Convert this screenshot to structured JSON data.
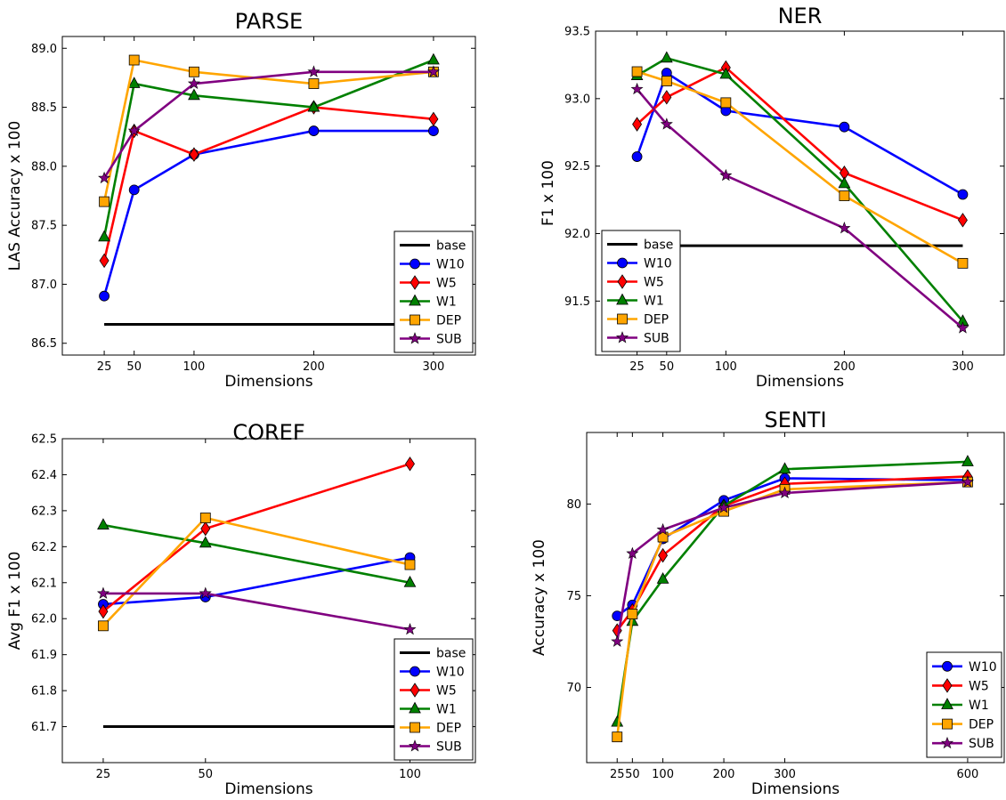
{
  "series_styles": {
    "base": {
      "color": "#000000",
      "marker": "none"
    },
    "W10": {
      "color": "#0000ff",
      "marker": "circle"
    },
    "W5": {
      "color": "#ff0000",
      "marker": "diamond"
    },
    "W1": {
      "color": "#008000",
      "marker": "triangle"
    },
    "DEP": {
      "color": "#ffa500",
      "marker": "square"
    },
    "SUB": {
      "color": "#800080",
      "marker": "star"
    }
  },
  "chart_data": [
    {
      "id": "parse",
      "type": "line",
      "title": "PARSE",
      "xlabel": "Dimensions",
      "ylabel": "LAS Accuracy x 100",
      "xlim": [
        -10,
        335
      ],
      "ylim": [
        86.4,
        89.1
      ],
      "xticks": [
        25,
        50,
        100,
        200,
        300
      ],
      "yticks": [
        "86.5",
        "87.0",
        "87.5",
        "88.0",
        "88.5",
        "89.0"
      ],
      "legend_position": "lower-right",
      "series": [
        {
          "name": "base",
          "x": [
            25,
            300
          ],
          "values": [
            86.66,
            86.66
          ]
        },
        {
          "name": "W10",
          "x": [
            25,
            50,
            100,
            200,
            300
          ],
          "values": [
            86.9,
            87.8,
            88.1,
            88.3,
            88.3
          ]
        },
        {
          "name": "W5",
          "x": [
            25,
            50,
            100,
            200,
            300
          ],
          "values": [
            87.2,
            88.3,
            88.1,
            88.5,
            88.4
          ]
        },
        {
          "name": "W1",
          "x": [
            25,
            50,
            100,
            200,
            300
          ],
          "values": [
            87.4,
            88.7,
            88.6,
            88.5,
            88.9
          ]
        },
        {
          "name": "DEP",
          "x": [
            25,
            50,
            100,
            200,
            300
          ],
          "values": [
            87.7,
            88.9,
            88.8,
            88.7,
            88.8
          ]
        },
        {
          "name": "SUB",
          "x": [
            25,
            50,
            100,
            200,
            300
          ],
          "values": [
            87.9,
            88.3,
            88.7,
            88.8,
            88.8
          ]
        }
      ]
    },
    {
      "id": "ner",
      "type": "line",
      "title": "NER",
      "xlabel": "Dimensions",
      "ylabel": "F1 x 100",
      "xlim": [
        -10,
        335
      ],
      "ylim": [
        91.1,
        93.5
      ],
      "xticks": [
        25,
        50,
        100,
        200,
        300
      ],
      "yticks": [
        "91.5",
        "92.0",
        "92.5",
        "93.0",
        "93.5"
      ],
      "legend_position": "lower-left",
      "series": [
        {
          "name": "base",
          "x": [
            25,
            300
          ],
          "values": [
            91.91,
            91.91
          ]
        },
        {
          "name": "W10",
          "x": [
            25,
            50,
            100,
            200,
            300
          ],
          "values": [
            92.57,
            93.19,
            92.91,
            92.79,
            92.29
          ]
        },
        {
          "name": "W5",
          "x": [
            25,
            50,
            100,
            200,
            300
          ],
          "values": [
            92.81,
            93.01,
            93.23,
            92.45,
            92.1
          ]
        },
        {
          "name": "W1",
          "x": [
            25,
            50,
            100,
            200,
            300
          ],
          "values": [
            93.17,
            93.3,
            93.18,
            92.37,
            91.35
          ]
        },
        {
          "name": "DEP",
          "x": [
            25,
            50,
            100,
            200,
            300
          ],
          "values": [
            93.2,
            93.13,
            92.97,
            92.28,
            91.78
          ]
        },
        {
          "name": "SUB",
          "x": [
            25,
            50,
            100,
            200,
            300
          ],
          "values": [
            93.07,
            92.81,
            92.43,
            92.04,
            91.3
          ]
        }
      ]
    },
    {
      "id": "coref",
      "type": "line",
      "title": "COREF",
      "xlabel": "Dimensions",
      "ylabel": "Avg F1 x 100",
      "xlim": [
        15,
        116
      ],
      "ylim": [
        61.6,
        62.5
      ],
      "xticks": [
        25,
        50,
        100
      ],
      "yticks": [
        "61.7",
        "61.8",
        "61.9",
        "62.0",
        "62.1",
        "62.2",
        "62.3",
        "62.4",
        "62.5"
      ],
      "legend_position": "lower-right",
      "series": [
        {
          "name": "base",
          "x": [
            25,
            100
          ],
          "values": [
            61.7,
            61.7
          ]
        },
        {
          "name": "W10",
          "x": [
            25,
            50,
            100
          ],
          "values": [
            62.04,
            62.06,
            62.17
          ]
        },
        {
          "name": "W5",
          "x": [
            25,
            50,
            100
          ],
          "values": [
            62.02,
            62.25,
            62.43
          ]
        },
        {
          "name": "W1",
          "x": [
            25,
            50,
            100
          ],
          "values": [
            62.26,
            62.21,
            62.1
          ]
        },
        {
          "name": "DEP",
          "x": [
            25,
            50,
            100
          ],
          "values": [
            61.98,
            62.28,
            62.15
          ]
        },
        {
          "name": "SUB",
          "x": [
            25,
            50,
            100
          ],
          "values": [
            62.07,
            62.07,
            61.97
          ]
        }
      ]
    },
    {
      "id": "senti",
      "type": "line",
      "title": "SENTI",
      "xlabel": "Dimensions",
      "ylabel": "Accuracy x 100",
      "xlim": [
        -25,
        660
      ],
      "ylim": [
        65.9,
        83.9
      ],
      "xticks": [
        25,
        50,
        100,
        200,
        300,
        600
      ],
      "xtick_labels": [
        "25",
        "50",
        "100",
        "200",
        "300",
        "600"
      ],
      "yticks": [
        "70",
        "75",
        "80"
      ],
      "legend_position": "lower-right",
      "series": [
        {
          "name": "W10",
          "x": [
            25,
            50,
            100,
            200,
            300,
            600
          ],
          "values": [
            73.9,
            74.5,
            78.1,
            80.2,
            81.4,
            81.3
          ]
        },
        {
          "name": "W5",
          "x": [
            25,
            50,
            100,
            200,
            300,
            600
          ],
          "values": [
            73.1,
            74.2,
            77.2,
            79.9,
            81.1,
            81.5
          ]
        },
        {
          "name": "W1",
          "x": [
            25,
            50,
            100,
            200,
            300,
            600
          ],
          "values": [
            68.1,
            73.6,
            75.9,
            79.9,
            81.9,
            82.3
          ]
        },
        {
          "name": "DEP",
          "x": [
            25,
            50,
            100,
            200,
            300,
            600
          ],
          "values": [
            67.3,
            74.0,
            78.2,
            79.6,
            80.8,
            81.2
          ]
        },
        {
          "name": "SUB",
          "x": [
            25,
            50,
            100,
            200,
            300,
            600
          ],
          "values": [
            72.5,
            77.3,
            78.6,
            79.8,
            80.6,
            81.2
          ]
        }
      ]
    }
  ]
}
